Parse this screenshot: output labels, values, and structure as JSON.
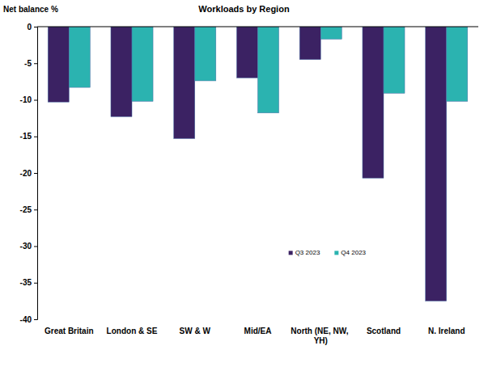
{
  "chart_data": {
    "type": "bar",
    "title": "Workloads by Region",
    "y_label": "Net balance %",
    "categories": [
      "Great Britain",
      "London & SE",
      "SW & W",
      "Mid/EA",
      "North (NE, NW, YH)",
      "Scotland",
      "N. Ireland"
    ],
    "series": [
      {
        "name": "Q3 2023",
        "color": "#3b2263",
        "values": [
          -10.3,
          -12.3,
          -15.3,
          -7,
          -4.5,
          -20.7,
          -37.5
        ]
      },
      {
        "name": "Q4 2023",
        "color": "#2bb3b0",
        "values": [
          -8.3,
          -10.2,
          -7.4,
          -11.8,
          -1.7,
          -9.1,
          -10.2
        ]
      }
    ],
    "ylim": [
      -40,
      0
    ],
    "yticks": [
      -40,
      -35,
      -30,
      -25,
      -20,
      -15,
      -10,
      -5,
      0
    ],
    "grid": false,
    "legend": "lower right"
  }
}
